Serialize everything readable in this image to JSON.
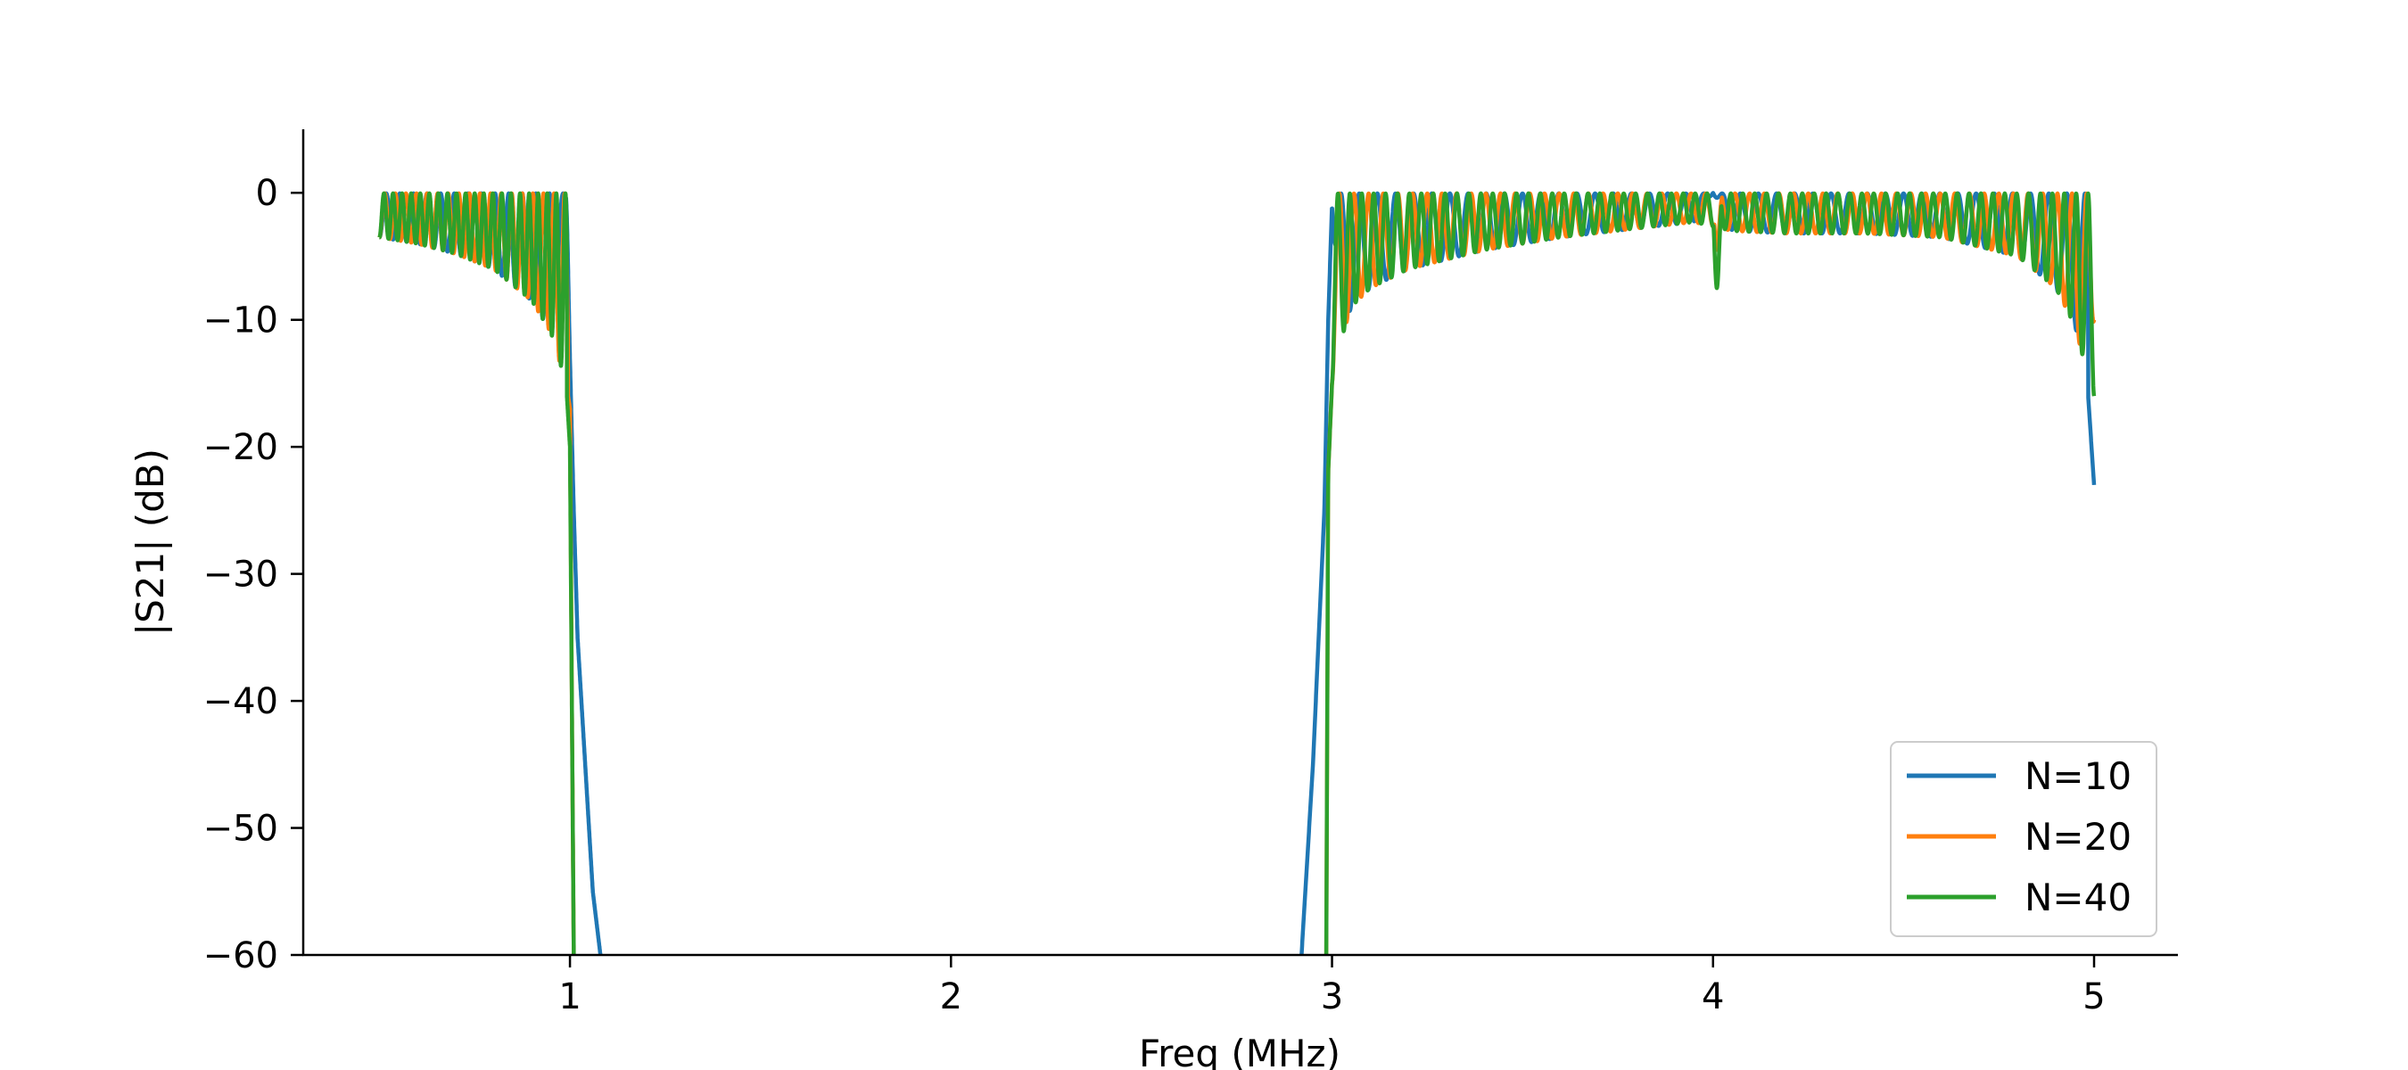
{
  "chart_data": {
    "type": "line",
    "title": "",
    "xlabel": "Freq (MHz)",
    "ylabel": "|S21| (dB)",
    "xlim": [
      0.3,
      5.22
    ],
    "ylim": [
      -60,
      5
    ],
    "xticks": [
      1,
      2,
      3,
      4,
      5
    ],
    "yticks": [
      0,
      -10,
      -20,
      -30,
      -40,
      -50,
      -60
    ],
    "xtick_labels": [
      "1",
      "2",
      "3",
      "4",
      "5"
    ],
    "ytick_labels": [
      "0",
      "−10",
      "−20",
      "−30",
      "−40",
      "−50",
      "−60"
    ],
    "grid": false,
    "legend_position": "lower-right",
    "passbands": [
      [
        0.5,
        1.0
      ],
      [
        3.0,
        5.0
      ]
    ],
    "series": [
      {
        "name": "N=10",
        "color": "#1f77b4",
        "ripple_cycles": [
          14,
          42
        ],
        "notch": null,
        "x": [
          0.5,
          0.6,
          0.7,
          0.8,
          0.9,
          0.95,
          0.99,
          1.0,
          1.01,
          1.02,
          1.04,
          1.06,
          1.08,
          2.92,
          2.95,
          2.98,
          2.99,
          3.0,
          3.02,
          3.05,
          3.1,
          3.2,
          3.4,
          3.6,
          3.8,
          3.95,
          4.0,
          4.05,
          4.2,
          4.4,
          4.6,
          4.8,
          4.9,
          4.95,
          4.98,
          5.0
        ],
        "y_env": [
          -3.5,
          -4.0,
          -4.8,
          -6.0,
          -8.5,
          -11.0,
          -1.0,
          -13.0,
          -25.0,
          -35.0,
          -45.0,
          -55.0,
          -60.0,
          -60.0,
          -45.0,
          -25.0,
          -10.0,
          -1.0,
          -12.0,
          -9.0,
          -7.5,
          -6.0,
          -4.5,
          -3.5,
          -2.8,
          -2.3,
          0.0,
          -3.0,
          -3.2,
          -3.2,
          -3.5,
          -5.0,
          -7.5,
          -10.5,
          -14.0,
          -23.0
        ]
      },
      {
        "name": "N=20",
        "color": "#ff7f0e",
        "ripple_cycles": [
          18,
          52
        ],
        "notch": {
          "x": 4.01,
          "depth": -4.5
        },
        "x": [
          0.5,
          0.6,
          0.7,
          0.8,
          0.9,
          0.95,
          0.99,
          1.0,
          1.005,
          1.01,
          2.985,
          2.99,
          3.0,
          3.02,
          3.05,
          3.1,
          3.2,
          3.4,
          3.6,
          3.8,
          3.95,
          4.05,
          4.2,
          4.4,
          4.6,
          4.8,
          4.9,
          4.95,
          4.98,
          5.0
        ],
        "y_env": [
          -3.5,
          -4.0,
          -4.8,
          -6.0,
          -8.5,
          -11.0,
          -15.0,
          -17.0,
          -40.0,
          -60.0,
          -60.0,
          -22.0,
          -15.0,
          -12.0,
          -9.0,
          -7.5,
          -6.0,
          -4.5,
          -3.5,
          -2.8,
          -2.3,
          -3.0,
          -3.2,
          -3.2,
          -3.5,
          -5.0,
          -7.5,
          -10.5,
          -14.0,
          -10.0
        ]
      },
      {
        "name": "N=40",
        "color": "#2ca02c",
        "ripple_cycles": [
          21,
          64
        ],
        "notch": {
          "x": 4.01,
          "depth": -7.5
        },
        "x": [
          0.5,
          0.6,
          0.7,
          0.8,
          0.9,
          0.95,
          0.99,
          1.0,
          1.005,
          1.01,
          2.985,
          2.99,
          3.0,
          3.02,
          3.05,
          3.1,
          3.2,
          3.4,
          3.6,
          3.8,
          3.95,
          4.05,
          4.2,
          4.4,
          4.6,
          4.8,
          4.9,
          4.95,
          4.98,
          5.0
        ],
        "y_env": [
          -3.5,
          -4.0,
          -4.8,
          -6.0,
          -8.5,
          -11.0,
          -15.0,
          -20.0,
          -40.0,
          -60.0,
          -60.0,
          -22.0,
          -15.0,
          -12.0,
          -9.0,
          -7.5,
          -6.0,
          -4.5,
          -3.5,
          -2.8,
          -2.3,
          -3.0,
          -3.2,
          -3.2,
          -3.5,
          -5.0,
          -7.5,
          -10.5,
          -14.0,
          -16.0
        ]
      }
    ]
  }
}
